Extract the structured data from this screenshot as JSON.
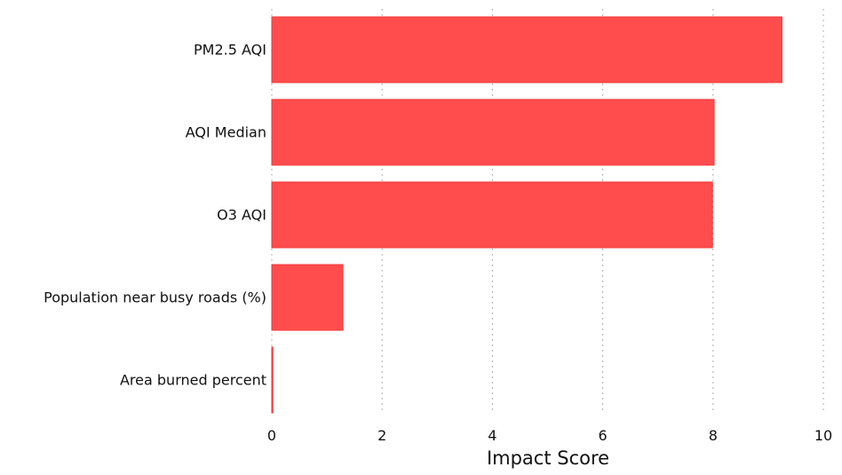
{
  "chart_data": {
    "type": "bar",
    "orientation": "horizontal",
    "categories": [
      "PM2.5 AQI",
      "AQI Median",
      "O3 AQI",
      "Population near busy roads (%)",
      "Area burned percent"
    ],
    "values": [
      9.25,
      8.02,
      7.99,
      1.29,
      0.02
    ],
    "title": "",
    "xlabel": "Impact Score",
    "ylabel": "",
    "xlim": [
      0,
      10
    ],
    "xticks": [
      0,
      2,
      4,
      6,
      8,
      10
    ],
    "xtick_labels": [
      "0",
      "2",
      "4",
      "6",
      "8",
      "10"
    ],
    "grid": "vertical dotted",
    "legend": "none",
    "bar_color": "#ff4c4c",
    "bar_edge_color": "#f03a3a"
  }
}
